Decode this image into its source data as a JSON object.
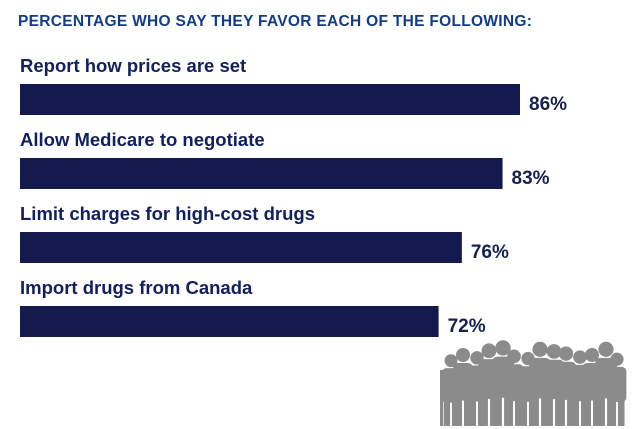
{
  "chart_data": {
    "type": "bar",
    "orientation": "horizontal",
    "title": "PERCENTAGE WHO SAY THEY FAVOR EACH OF THE FOLLOWING:",
    "categories": [
      "Report how prices are set",
      "Allow Medicare to negotiate",
      "Limit charges for high-cost drugs",
      "Import drugs from Canada"
    ],
    "values": [
      86,
      83,
      76,
      72
    ],
    "value_labels": [
      "86%",
      "83%",
      "76%",
      "72%"
    ],
    "xlim": [
      0,
      100
    ],
    "grid": false,
    "legend": "none",
    "decoration_icon": "crowd-silhouette-icon"
  },
  "colors": {
    "bar": "#151a4e",
    "title": "#123c8a",
    "category_text": "#132060",
    "value_text": "#16214f",
    "crowd": "#8b8b8b"
  }
}
